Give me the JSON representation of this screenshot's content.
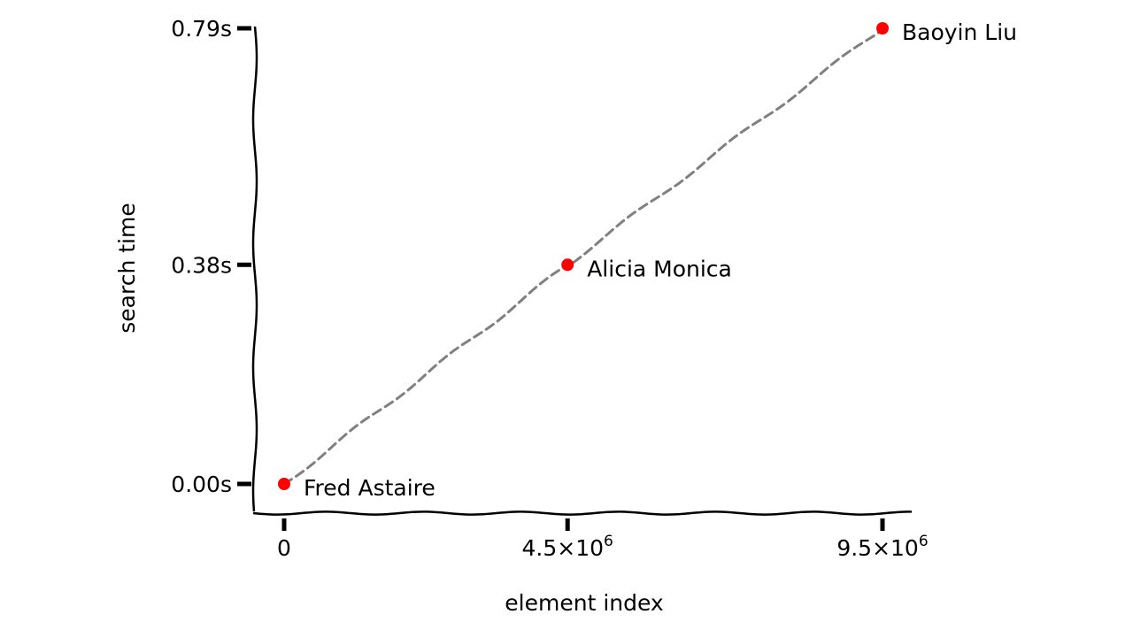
{
  "chart_data": {
    "type": "scatter",
    "xlabel": "element index",
    "ylabel": "search time",
    "x_ticks": [
      {
        "value": 0,
        "mantissa": "0",
        "exp": ""
      },
      {
        "value": 4500000,
        "mantissa": "4.5×10",
        "exp": "6"
      },
      {
        "value": 9500000,
        "mantissa": "9.5×10",
        "exp": "6"
      }
    ],
    "y_ticks": [
      {
        "value": 0.0,
        "label": "0.00s"
      },
      {
        "value": 0.38,
        "label": "0.38s"
      },
      {
        "value": 0.79,
        "label": "0.79s"
      }
    ],
    "xlim": [
      -450000,
      10000000
    ],
    "ylim": [
      -0.05,
      0.79
    ],
    "points": [
      {
        "x": 0,
        "y": 0.0,
        "label": "Fred Astaire"
      },
      {
        "x": 4500000,
        "y": 0.38,
        "label": "Alicia Monica"
      },
      {
        "x": 9500000,
        "y": 0.79,
        "label": "Baoyin Liu"
      }
    ],
    "point_color": "#ff0000",
    "line_color": "#808080",
    "line_style": "dashed",
    "grid": false
  }
}
